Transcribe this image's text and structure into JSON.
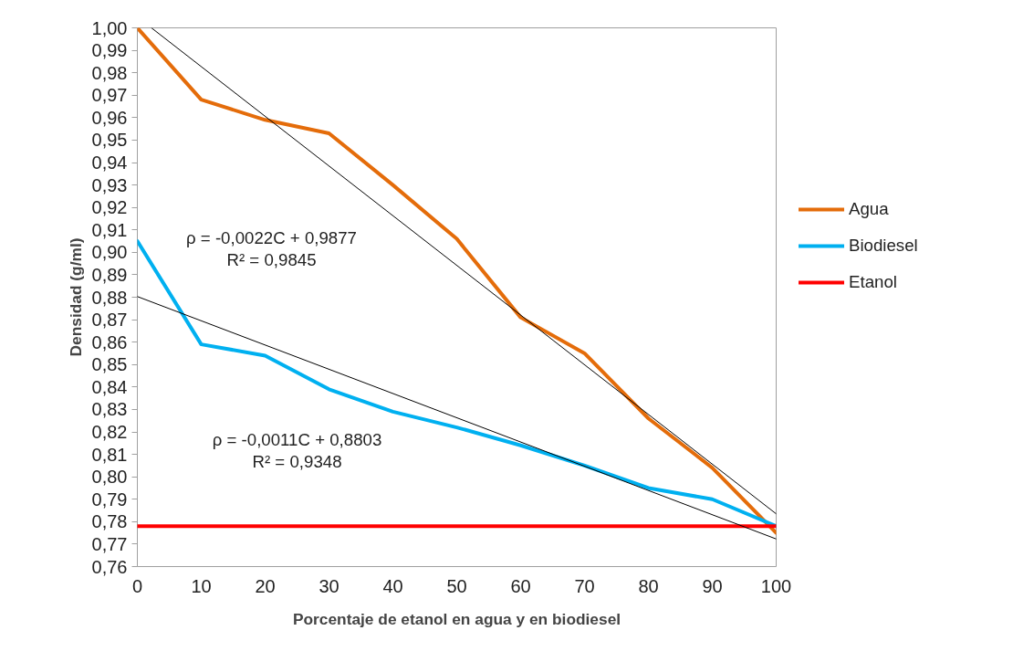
{
  "chart_data": {
    "type": "line",
    "xlabel": "Porcentaje de etanol en agua y en biodiesel",
    "ylabel": "Densidad (g/ml)",
    "x": [
      0,
      10,
      20,
      30,
      40,
      50,
      60,
      70,
      80,
      90,
      100
    ],
    "series": [
      {
        "name": "Agua",
        "color": "#e46c0a",
        "values": [
          1.0,
          0.968,
          0.959,
          0.953,
          0.93,
          0.906,
          0.871,
          0.855,
          0.826,
          0.804,
          0.775
        ]
      },
      {
        "name": "Biodiesel",
        "color": "#00b0f0",
        "values": [
          0.905,
          0.859,
          0.854,
          0.839,
          0.829,
          0.822,
          0.814,
          0.805,
          0.795,
          0.79,
          0.778
        ]
      },
      {
        "name": "Etanol",
        "color": "#ff0000",
        "x": [
          0,
          100
        ],
        "values": [
          0.778,
          0.778
        ]
      },
      {
        "color": "#000000",
        "x": [
          2.2,
          100
        ],
        "values": [
          1.0,
          0.7835
        ]
      },
      {
        "color": "#000000",
        "x": [
          0,
          100
        ],
        "values": [
          0.8803,
          0.7723
        ]
      }
    ],
    "annotations": [
      "ρ = -0,0022C + 0,9877\nR² = 0,9845",
      "ρ = -0,0011C + 0,8803\nR² = 0,9348"
    ],
    "xlim": [
      0,
      100
    ],
    "ylim": [
      0.76,
      1.0
    ],
    "xticks": [
      0,
      10,
      20,
      30,
      40,
      50,
      60,
      70,
      80,
      90,
      100
    ],
    "yticks": [
      {
        "value": 0.76,
        "label": "0,76"
      },
      {
        "value": 0.77,
        "label": "0,77"
      },
      {
        "value": 0.78,
        "label": "0,78"
      },
      {
        "value": 0.79,
        "label": "0,79"
      },
      {
        "value": 0.8,
        "label": "0,80"
      },
      {
        "value": 0.81,
        "label": "0,81"
      },
      {
        "value": 0.82,
        "label": "0,82"
      },
      {
        "value": 0.83,
        "label": "0,83"
      },
      {
        "value": 0.84,
        "label": "0,84"
      },
      {
        "value": 0.85,
        "label": "0,85"
      },
      {
        "value": 0.86,
        "label": "0,86"
      },
      {
        "value": 0.87,
        "label": "0,87"
      },
      {
        "value": 0.88,
        "label": "0,88"
      },
      {
        "value": 0.89,
        "label": "0,89"
      },
      {
        "value": 0.9,
        "label": "0,90"
      },
      {
        "value": 0.91,
        "label": "0,91"
      },
      {
        "value": 0.92,
        "label": "0,92"
      },
      {
        "value": 0.93,
        "label": "0,93"
      },
      {
        "value": 0.94,
        "label": "0,94"
      },
      {
        "value": 0.95,
        "label": "0,95"
      },
      {
        "value": 0.96,
        "label": "0,96"
      },
      {
        "value": 0.97,
        "label": "0,97"
      },
      {
        "value": 0.98,
        "label": "0,98"
      },
      {
        "value": 0.99,
        "label": "0,99"
      },
      {
        "value": 1.0,
        "label": "1,00"
      }
    ],
    "grid": false,
    "legend": "right",
    "marker": "none",
    "line_style": "solid"
  }
}
